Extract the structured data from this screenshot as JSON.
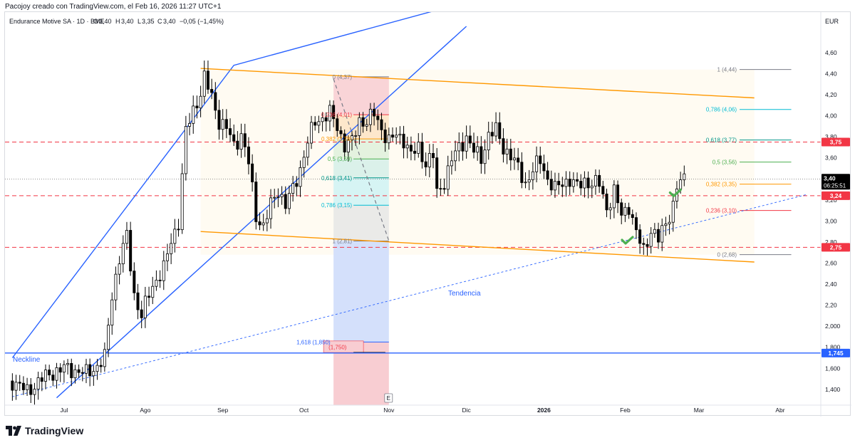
{
  "header": {
    "credit": "Pacojoy creado con TradingView.com, el Feb 16, 2026 11:27 UTC+1"
  },
  "footer": {
    "brand": "TradingView"
  },
  "colors": {
    "up": "#ffffff",
    "down": "#000000",
    "channel_blue": "#2962ff",
    "channel_orange": "#ff9800",
    "red_dash": "#f23645",
    "neckline": "#2962ff",
    "check": "#4caf50"
  },
  "chart_data": {
    "type": "candlestick",
    "legend": {
      "symbol": "Endurance Motive SA · 1D · BME",
      "open_label": "O",
      "open": "3,40",
      "high_label": "H",
      "high": "3,40",
      "low_label": "L",
      "low": "3,35",
      "close_label": "C",
      "close": "3,40",
      "change": "−0,05 (−1,45%)"
    },
    "currency": "EUR",
    "ylim": [
      1.25,
      4.85
    ],
    "y_ticks": [
      "1,400",
      "1,600",
      "1,800",
      "2,000",
      "2,20",
      "2,40",
      "2,60",
      "2,80",
      "3,00",
      "3,20",
      "3,40",
      "3,60",
      "3,80",
      "4,00",
      "4,20",
      "4,40",
      "4,60"
    ],
    "y_tick_values": [
      1.4,
      1.6,
      1.8,
      2.0,
      2.2,
      2.4,
      2.6,
      2.8,
      3.0,
      3.2,
      3.4,
      3.6,
      3.8,
      4.0,
      4.2,
      4.4,
      4.6
    ],
    "x_labels": [
      {
        "label": "Jul",
        "day": 0
      },
      {
        "label": "Ago",
        "day": 22
      },
      {
        "label": "Sep",
        "day": 43
      },
      {
        "label": "Oct",
        "day": 65
      },
      {
        "label": "Nov",
        "day": 88
      },
      {
        "label": "Dic",
        "day": 109
      },
      {
        "label": "2026",
        "day": 130
      },
      {
        "label": "Feb",
        "day": 152
      },
      {
        "label": "Mar",
        "day": 172
      },
      {
        "label": "Abr",
        "day": 194
      }
    ],
    "candle_anchors": [
      [
        -14,
        1.48
      ],
      [
        -10,
        1.38
      ],
      [
        -6,
        1.5
      ],
      [
        -3,
        1.56
      ],
      [
        0,
        1.6
      ],
      [
        3,
        1.58
      ],
      [
        6,
        1.55
      ],
      [
        9,
        1.62
      ],
      [
        11,
        1.7
      ],
      [
        13,
        2.3
      ],
      [
        15,
        2.65
      ],
      [
        17,
        2.85
      ],
      [
        19,
        2.3
      ],
      [
        21,
        2.1
      ],
      [
        23,
        2.3
      ],
      [
        25,
        2.45
      ],
      [
        27,
        2.55
      ],
      [
        29,
        2.8
      ],
      [
        31,
        3.0
      ],
      [
        33,
        3.85
      ],
      [
        35,
        4.05
      ],
      [
        37,
        4.22
      ],
      [
        38,
        4.36
      ],
      [
        40,
        4.18
      ],
      [
        42,
        3.95
      ],
      [
        44,
        3.88
      ],
      [
        46,
        3.72
      ],
      [
        48,
        3.82
      ],
      [
        50,
        3.55
      ],
      [
        52,
        3.05
      ],
      [
        54,
        2.95
      ],
      [
        56,
        3.15
      ],
      [
        58,
        3.3
      ],
      [
        60,
        3.15
      ],
      [
        62,
        3.3
      ],
      [
        64,
        3.5
      ],
      [
        66,
        3.75
      ],
      [
        68,
        3.95
      ],
      [
        70,
        3.98
      ],
      [
        72,
        4.02
      ],
      [
        74,
        3.9
      ],
      [
        76,
        3.72
      ],
      [
        78,
        3.75
      ],
      [
        80,
        3.96
      ],
      [
        82,
        3.94
      ],
      [
        84,
        4.02
      ],
      [
        86,
        3.88
      ],
      [
        88,
        3.75
      ],
      [
        90,
        3.82
      ],
      [
        92,
        3.78
      ],
      [
        94,
        3.62
      ],
      [
        96,
        3.7
      ],
      [
        98,
        3.55
      ],
      [
        100,
        3.62
      ],
      [
        101,
        3.26
      ],
      [
        103,
        3.38
      ],
      [
        105,
        3.58
      ],
      [
        107,
        3.7
      ],
      [
        109,
        3.8
      ],
      [
        111,
        3.66
      ],
      [
        113,
        3.6
      ],
      [
        115,
        3.82
      ],
      [
        117,
        3.86
      ],
      [
        119,
        3.7
      ],
      [
        121,
        3.62
      ],
      [
        123,
        3.5
      ],
      [
        125,
        3.36
      ],
      [
        127,
        3.48
      ],
      [
        129,
        3.58
      ],
      [
        131,
        3.4
      ],
      [
        133,
        3.3
      ],
      [
        135,
        3.36
      ],
      [
        137,
        3.4
      ],
      [
        139,
        3.32
      ],
      [
        141,
        3.38
      ],
      [
        143,
        3.36
      ],
      [
        145,
        3.35
      ],
      [
        147,
        3.12
      ],
      [
        149,
        3.28
      ],
      [
        151,
        3.05
      ],
      [
        153,
        3.15
      ],
      [
        155,
        2.88
      ],
      [
        157,
        2.72
      ],
      [
        159,
        2.92
      ],
      [
        161,
        2.82
      ],
      [
        163,
        2.98
      ],
      [
        165,
        3.15
      ],
      [
        166,
        3.32
      ],
      [
        168,
        3.4
      ]
    ],
    "channels": [
      {
        "name": "upper-blue-line",
        "color": "#2962ff",
        "points": [
          [
            -14,
            1.7
          ],
          [
            46,
            4.48
          ],
          [
            111,
            5.1
          ]
        ]
      },
      {
        "name": "lower-blue-line",
        "color": "#2962ff",
        "points": [
          [
            -2,
            1.32
          ],
          [
            109,
            4.85
          ]
        ]
      },
      {
        "name": "orange-channel-top",
        "color": "#ff9800",
        "points": [
          [
            37,
            4.45
          ],
          [
            187,
            4.17
          ]
        ]
      },
      {
        "name": "orange-channel-bottom",
        "color": "#ff9800",
        "points": [
          [
            37,
            2.9
          ],
          [
            187,
            2.61
          ]
        ]
      }
    ],
    "trend_line": {
      "label": "Tendencia",
      "color": "#2962ff",
      "points": [
        [
          -14,
          1.33
        ],
        [
          201,
          3.25
        ]
      ]
    },
    "neckline": {
      "label": "Neckline",
      "value": 1.745,
      "color": "#2962ff"
    },
    "horizontal_levels": [
      {
        "value": 3.75,
        "label": "3,75",
        "color": "#f23645"
      },
      {
        "value": 3.24,
        "label": "3,24",
        "color": "#f23645"
      },
      {
        "value": 2.75,
        "label": "2,75",
        "color": "#f23645"
      }
    ],
    "last_price": {
      "value": 3.4,
      "label": "3,40",
      "countdown": "06:25:51"
    },
    "fib_right": {
      "x_start": 183,
      "x_end": 197,
      "levels": [
        {
          "label": "1 (4,44)",
          "value": 4.44,
          "color": "#787b86"
        },
        {
          "label": "0,786 (4,06)",
          "value": 4.06,
          "color": "#00bcd4"
        },
        {
          "label": "0,618 (3,77)",
          "value": 3.77,
          "color": "#009688"
        },
        {
          "label": "0,5 (3,56)",
          "value": 3.56,
          "color": "#4caf50"
        },
        {
          "label": "0,382 (3,35)",
          "value": 3.35,
          "color": "#ff9800"
        },
        {
          "label": "0,236 (3,10)",
          "value": 3.1,
          "color": "#f23645"
        },
        {
          "label": "0 (2,68)",
          "value": 2.68,
          "color": "#787b86"
        }
      ]
    },
    "fib_left": {
      "x_start": 73,
      "x_end": 88,
      "levels": [
        {
          "label": "0 (4,37)",
          "value": 4.37,
          "color": "#787b86"
        },
        {
          "label": "0,236 (4,01)",
          "value": 4.01,
          "color": "#f23645"
        },
        {
          "label": "0,382 (3,78)",
          "value": 3.78,
          "color": "#ff9800"
        },
        {
          "label": "0,5 (3,59)",
          "value": 3.59,
          "color": "#4caf50"
        },
        {
          "label": "0,618 (3,41)",
          "value": 3.41,
          "color": "#009688"
        },
        {
          "label": "0,786 (3,15)",
          "value": 3.15,
          "color": "#00bcd4"
        },
        {
          "label": "1 (2,81)",
          "value": 2.81,
          "color": "#787b86"
        },
        {
          "label": "1,618 (1,850)",
          "value": 1.85,
          "color": "#2962ff"
        }
      ],
      "target_label": "(1,750)"
    },
    "event_marker": "E"
  }
}
